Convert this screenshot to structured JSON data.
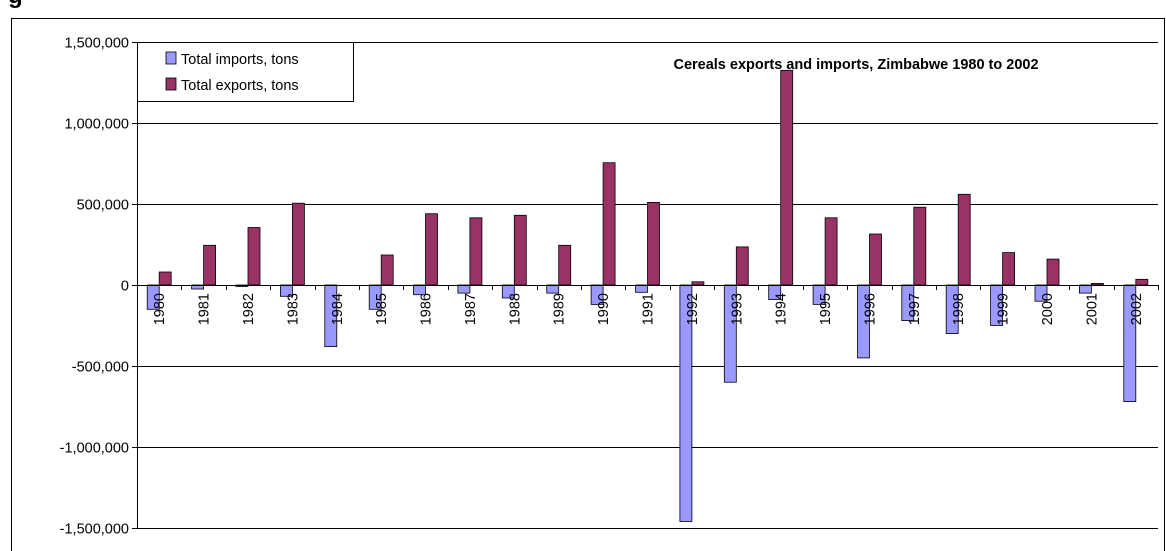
{
  "heading_partial": "g",
  "chart_data": {
    "type": "bar",
    "title": "Cereals exports and imports, Zimbabwe 1980 to 2002",
    "xlabel": "",
    "ylabel": "",
    "ylim": [
      -1500000,
      1500000
    ],
    "yticks": [
      1500000,
      1000000,
      500000,
      0,
      -500000,
      -1000000,
      -1500000
    ],
    "ytick_labels": [
      "1,500,000",
      "1,000,000",
      "500,000",
      "0",
      "-500,000",
      "-1,000,000",
      "-1,500,000"
    ],
    "grid": true,
    "legend_position": "top-left",
    "categories": [
      "1980",
      "1981",
      "1982",
      "1983",
      "1984",
      "1985",
      "1986",
      "1987",
      "1988",
      "1989",
      "1990",
      "1991",
      "1992",
      "1993",
      "1994",
      "1995",
      "1996",
      "1997",
      "1998",
      "1999",
      "2000",
      "2001",
      "2002"
    ],
    "series": [
      {
        "name": "Total imports, tons",
        "color": "#9999ff",
        "values": [
          -150000,
          -25000,
          -10000,
          -70000,
          -380000,
          -150000,
          -60000,
          -50000,
          -80000,
          -50000,
          -120000,
          -45000,
          -1460000,
          -600000,
          -90000,
          -120000,
          -450000,
          -220000,
          -300000,
          -250000,
          -100000,
          -50000,
          -720000
        ]
      },
      {
        "name": "Total exports, tons",
        "color": "#993366",
        "values": [
          80000,
          245000,
          355000,
          505000,
          0,
          185000,
          440000,
          415000,
          430000,
          245000,
          755000,
          510000,
          20000,
          235000,
          1325000,
          415000,
          315000,
          480000,
          560000,
          200000,
          160000,
          10000,
          35000
        ]
      }
    ]
  }
}
